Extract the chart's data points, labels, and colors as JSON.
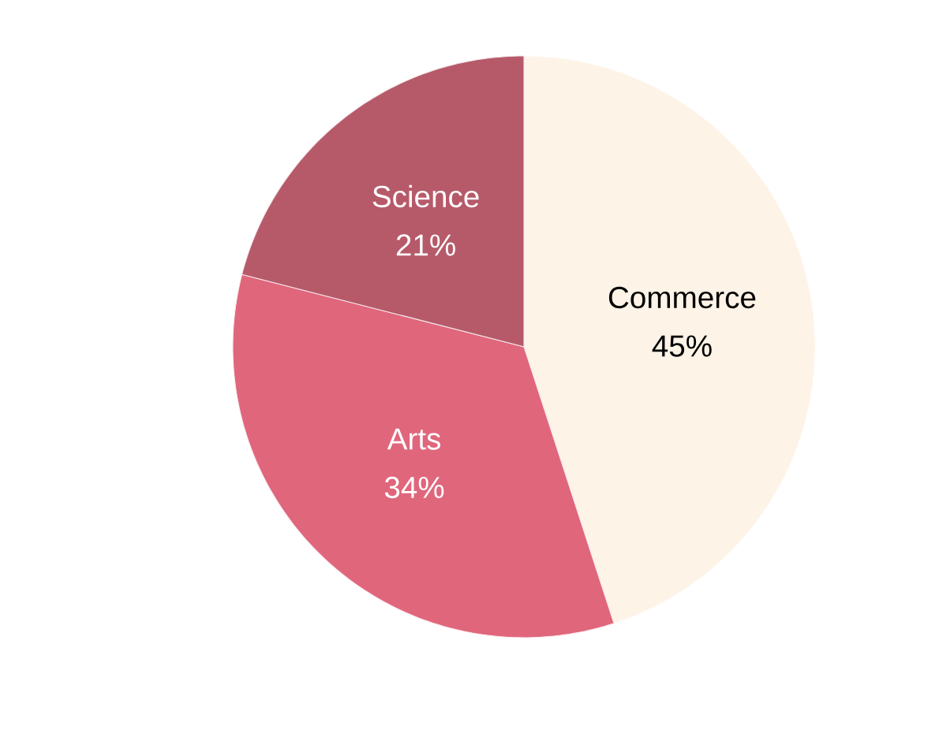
{
  "chart_data": {
    "type": "pie",
    "categories": [
      "Commerce",
      "Arts",
      "Science"
    ],
    "values": [
      45,
      34,
      21
    ],
    "colors": [
      "#fdf3e7",
      "#e0667c",
      "#b65a6a"
    ],
    "value_labels": [
      "45%",
      "34%",
      "21%"
    ]
  }
}
